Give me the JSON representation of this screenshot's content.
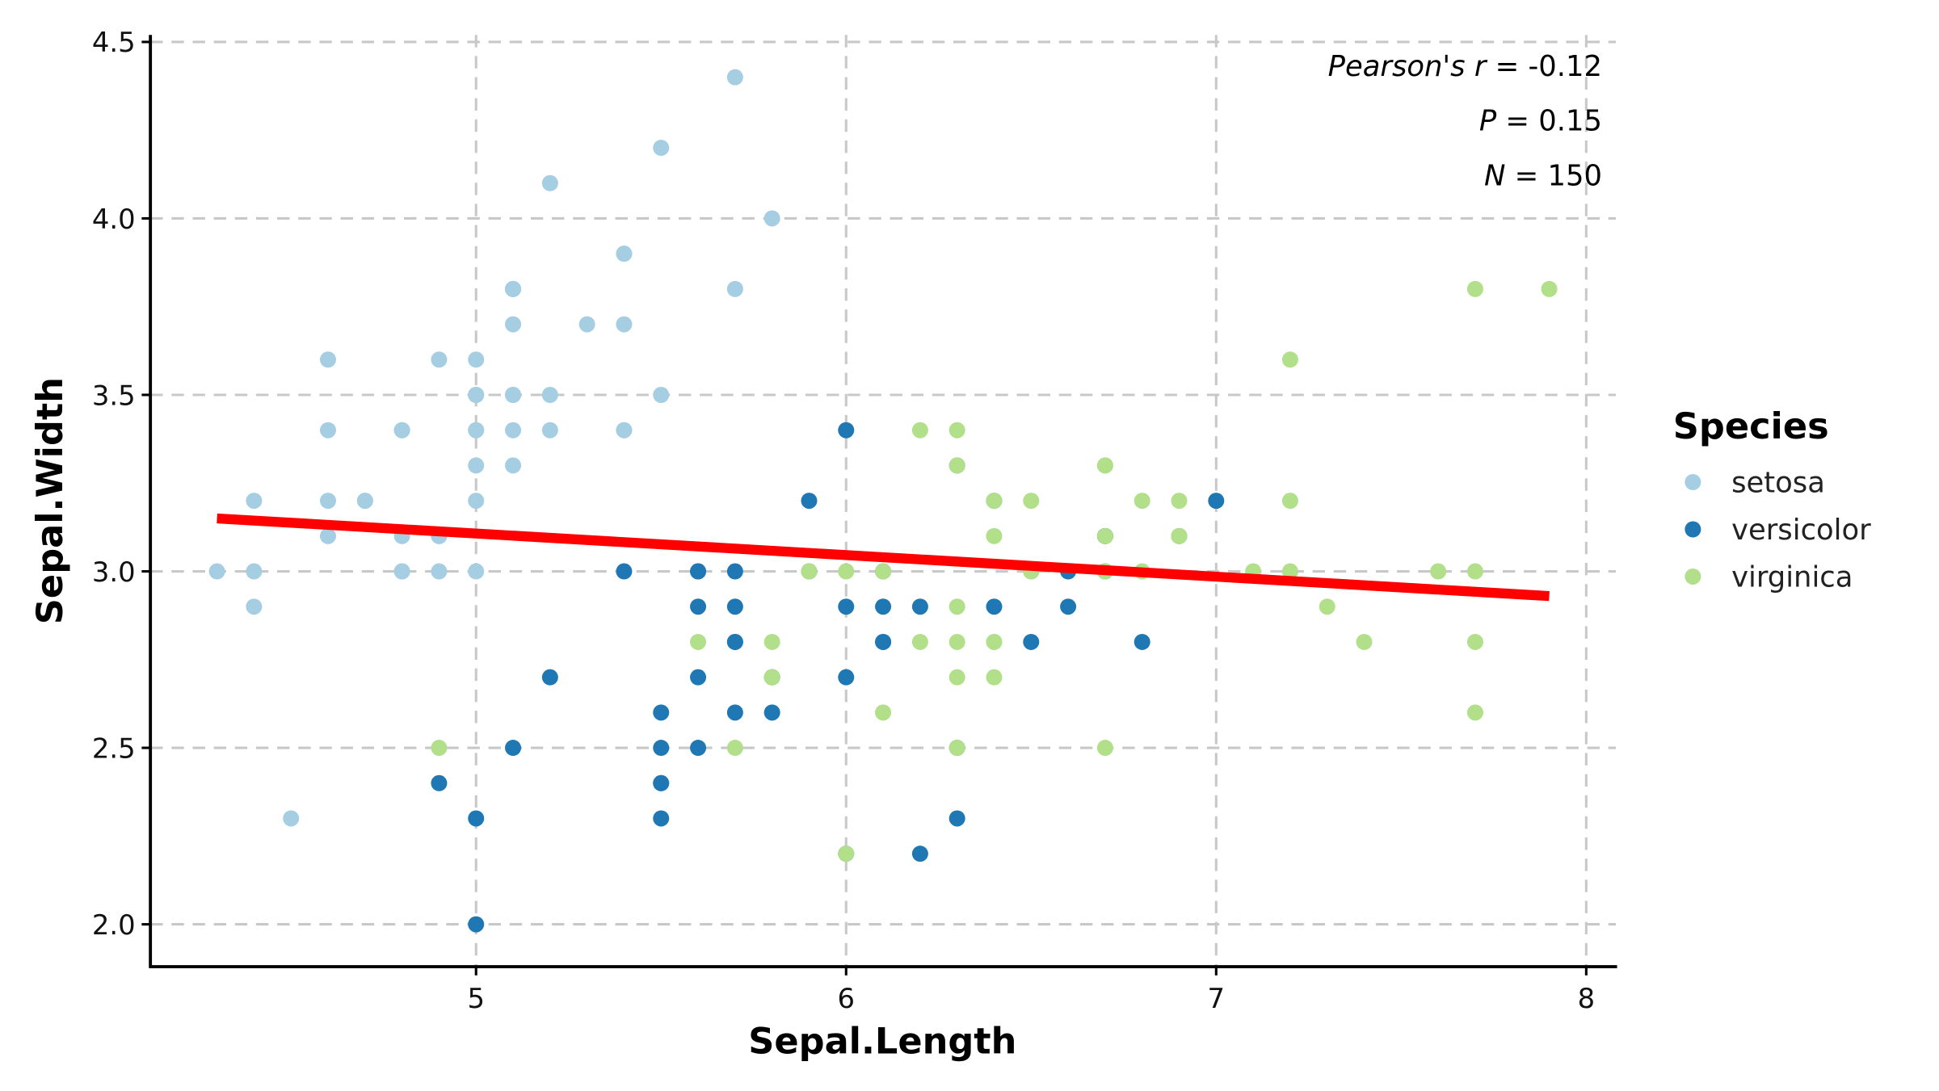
{
  "chart_data": {
    "type": "scatter",
    "title": "",
    "xlabel": "Sepal.Length",
    "ylabel": "Sepal.Width",
    "xlim": [
      4.12,
      8.08
    ],
    "ylim": [
      1.88,
      4.52
    ],
    "xticks": [
      "5",
      "6",
      "7",
      "8"
    ],
    "yticks": [
      "2.0",
      "2.5",
      "3.0",
      "3.5",
      "4.0",
      "4.5"
    ],
    "grid": true,
    "legend": {
      "title": "Species",
      "placement": "right"
    },
    "annotations": [
      {
        "label": "Pearson's r",
        "value": " = -0.12"
      },
      {
        "label": "P",
        "value": " = 0.15"
      },
      {
        "label": "N",
        "value": " = 150"
      }
    ],
    "regression_line": {
      "color": "#ff0000",
      "x": [
        4.3,
        7.9
      ],
      "y": [
        3.15,
        2.93
      ]
    },
    "series": [
      {
        "name": "setosa",
        "color": "#a6cee3",
        "points": [
          [
            5.1,
            3.5
          ],
          [
            4.9,
            3.0
          ],
          [
            4.7,
            3.2
          ],
          [
            4.6,
            3.1
          ],
          [
            5.0,
            3.6
          ],
          [
            5.4,
            3.9
          ],
          [
            4.6,
            3.4
          ],
          [
            5.0,
            3.4
          ],
          [
            4.4,
            2.9
          ],
          [
            4.9,
            3.1
          ],
          [
            5.4,
            3.7
          ],
          [
            4.8,
            3.4
          ],
          [
            4.8,
            3.0
          ],
          [
            4.3,
            3.0
          ],
          [
            5.8,
            4.0
          ],
          [
            5.7,
            4.4
          ],
          [
            5.4,
            3.9
          ],
          [
            5.1,
            3.5
          ],
          [
            5.7,
            3.8
          ],
          [
            5.1,
            3.8
          ],
          [
            5.4,
            3.4
          ],
          [
            5.1,
            3.7
          ],
          [
            4.6,
            3.6
          ],
          [
            5.1,
            3.3
          ],
          [
            4.8,
            3.4
          ],
          [
            5.0,
            3.0
          ],
          [
            5.0,
            3.4
          ],
          [
            5.2,
            3.5
          ],
          [
            5.2,
            3.4
          ],
          [
            4.7,
            3.2
          ],
          [
            4.8,
            3.1
          ],
          [
            5.4,
            3.4
          ],
          [
            5.2,
            4.1
          ],
          [
            5.5,
            4.2
          ],
          [
            4.9,
            3.1
          ],
          [
            5.0,
            3.2
          ],
          [
            5.5,
            3.5
          ],
          [
            4.9,
            3.6
          ],
          [
            4.4,
            3.0
          ],
          [
            5.1,
            3.4
          ],
          [
            5.0,
            3.5
          ],
          [
            4.5,
            2.3
          ],
          [
            4.4,
            3.2
          ],
          [
            5.0,
            3.5
          ],
          [
            5.1,
            3.8
          ],
          [
            4.8,
            3.0
          ],
          [
            5.1,
            3.8
          ],
          [
            4.6,
            3.2
          ],
          [
            5.3,
            3.7
          ],
          [
            5.0,
            3.3
          ]
        ]
      },
      {
        "name": "versicolor",
        "color": "#1f78b4",
        "points": [
          [
            7.0,
            3.2
          ],
          [
            6.4,
            3.2
          ],
          [
            6.9,
            3.1
          ],
          [
            5.5,
            2.3
          ],
          [
            6.5,
            2.8
          ],
          [
            5.7,
            2.8
          ],
          [
            6.3,
            3.3
          ],
          [
            4.9,
            2.4
          ],
          [
            6.6,
            2.9
          ],
          [
            5.2,
            2.7
          ],
          [
            5.0,
            2.0
          ],
          [
            5.9,
            3.0
          ],
          [
            6.0,
            2.2
          ],
          [
            6.1,
            2.9
          ],
          [
            5.6,
            2.9
          ],
          [
            6.7,
            3.1
          ],
          [
            5.6,
            3.0
          ],
          [
            5.8,
            2.7
          ],
          [
            6.2,
            2.2
          ],
          [
            5.6,
            2.5
          ],
          [
            5.9,
            3.2
          ],
          [
            6.1,
            2.8
          ],
          [
            6.3,
            2.5
          ],
          [
            6.1,
            2.8
          ],
          [
            6.4,
            2.9
          ],
          [
            6.6,
            3.0
          ],
          [
            6.8,
            2.8
          ],
          [
            6.7,
            3.0
          ],
          [
            6.0,
            2.9
          ],
          [
            5.7,
            2.6
          ],
          [
            5.5,
            2.4
          ],
          [
            5.5,
            2.4
          ],
          [
            5.8,
            2.7
          ],
          [
            6.0,
            2.7
          ],
          [
            5.4,
            3.0
          ],
          [
            6.0,
            3.4
          ],
          [
            6.7,
            3.1
          ],
          [
            6.3,
            2.3
          ],
          [
            5.6,
            3.0
          ],
          [
            5.5,
            2.5
          ],
          [
            5.5,
            2.6
          ],
          [
            6.1,
            3.0
          ],
          [
            5.8,
            2.6
          ],
          [
            5.0,
            2.3
          ],
          [
            5.6,
            2.7
          ],
          [
            5.7,
            3.0
          ],
          [
            5.7,
            2.9
          ],
          [
            6.2,
            2.9
          ],
          [
            5.1,
            2.5
          ],
          [
            5.7,
            2.8
          ]
        ]
      },
      {
        "name": "virginica",
        "color": "#b2df8a",
        "points": [
          [
            6.3,
            3.3
          ],
          [
            5.8,
            2.7
          ],
          [
            7.1,
            3.0
          ],
          [
            6.3,
            2.9
          ],
          [
            6.5,
            3.0
          ],
          [
            7.6,
            3.0
          ],
          [
            4.9,
            2.5
          ],
          [
            7.3,
            2.9
          ],
          [
            6.7,
            2.5
          ],
          [
            7.2,
            3.6
          ],
          [
            6.5,
            3.2
          ],
          [
            6.4,
            2.7
          ],
          [
            6.8,
            3.0
          ],
          [
            5.7,
            2.5
          ],
          [
            5.8,
            2.8
          ],
          [
            6.4,
            3.2
          ],
          [
            6.5,
            3.0
          ],
          [
            7.7,
            3.8
          ],
          [
            7.7,
            2.6
          ],
          [
            6.0,
            2.2
          ],
          [
            6.9,
            3.2
          ],
          [
            5.6,
            2.8
          ],
          [
            7.7,
            2.8
          ],
          [
            6.3,
            2.7
          ],
          [
            6.7,
            3.3
          ],
          [
            7.2,
            3.2
          ],
          [
            6.2,
            2.8
          ],
          [
            6.1,
            3.0
          ],
          [
            6.4,
            2.8
          ],
          [
            7.2,
            3.0
          ],
          [
            7.4,
            2.8
          ],
          [
            7.9,
            3.8
          ],
          [
            6.4,
            2.8
          ],
          [
            6.3,
            2.8
          ],
          [
            6.1,
            2.6
          ],
          [
            7.7,
            3.0
          ],
          [
            6.3,
            3.4
          ],
          [
            6.4,
            3.1
          ],
          [
            6.0,
            3.0
          ],
          [
            6.9,
            3.1
          ],
          [
            6.7,
            3.1
          ],
          [
            6.9,
            3.1
          ],
          [
            5.8,
            2.7
          ],
          [
            6.8,
            3.2
          ],
          [
            6.7,
            3.3
          ],
          [
            6.7,
            3.0
          ],
          [
            6.3,
            2.5
          ],
          [
            6.5,
            3.0
          ],
          [
            6.2,
            3.4
          ],
          [
            5.9,
            3.0
          ]
        ]
      }
    ]
  }
}
